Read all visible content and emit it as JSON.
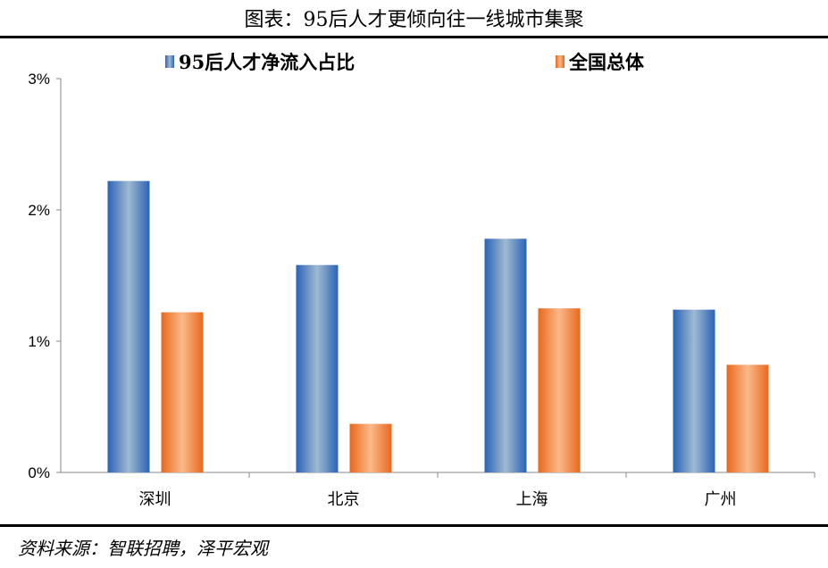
{
  "title": "图表：95后人才更倾向往一线城市集聚",
  "source": "资料来源：智联招聘，泽平宏观",
  "chart_data": {
    "type": "bar",
    "categories": [
      "深圳",
      "北京",
      "上海",
      "广州"
    ],
    "series": [
      {
        "name": "95后人才净流入占比",
        "values": [
          2.22,
          1.58,
          1.78,
          1.24
        ],
        "color": "#4F81BD"
      },
      {
        "name": "全国总体",
        "values": [
          1.22,
          0.37,
          1.25,
          0.82
        ],
        "color": "#F79646"
      }
    ],
    "ylim": [
      0,
      3
    ],
    "yticks": [
      "0%",
      "1%",
      "2%",
      "3%"
    ],
    "legend": "top",
    "grid": false
  }
}
